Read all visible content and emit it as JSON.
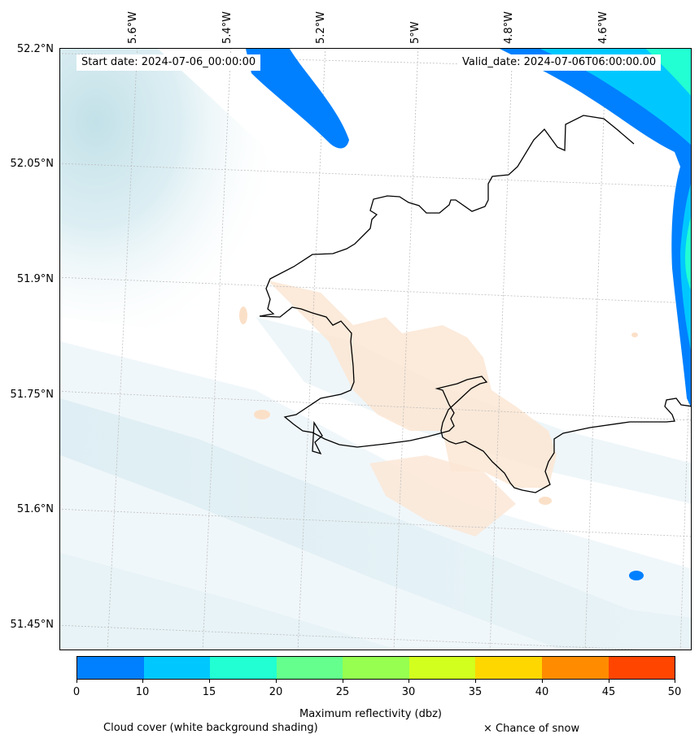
{
  "map": {
    "start_label": "Start date: 2024-07-06_00:00:00",
    "valid_label": "Valid_date: 2024-07-06T06:00:00.00",
    "lat_labels": [
      "52.2°N",
      "52.05°N",
      "51.9°N",
      "51.75°N",
      "51.6°N",
      "51.45°N"
    ],
    "lon_labels": [
      "5.6°W",
      "5.4°W",
      "5.2°W",
      "5°W",
      "4.8°W",
      "4.6°W"
    ],
    "background": "#ffffff",
    "coastline_color": "#000000",
    "gridline_style": "dotted grey",
    "cloud_cover_colors": [
      "#c7e3ea",
      "#fbe6d4"
    ]
  },
  "colorbar": {
    "label": "Maximum reflectivity (dbz)",
    "ticks": [
      "0",
      "10",
      "15",
      "20",
      "25",
      "30",
      "35",
      "40",
      "45",
      "50"
    ],
    "colors": [
      "#0080ff",
      "#00c8ff",
      "#22ffd2",
      "#64ff8c",
      "#96ff50",
      "#d2ff1e",
      "#ffd700",
      "#ff8c00",
      "#ff4500"
    ]
  },
  "legend": {
    "cloud_note": "Cloud cover (white background shading)",
    "snow_note": "× Chance of snow"
  }
}
